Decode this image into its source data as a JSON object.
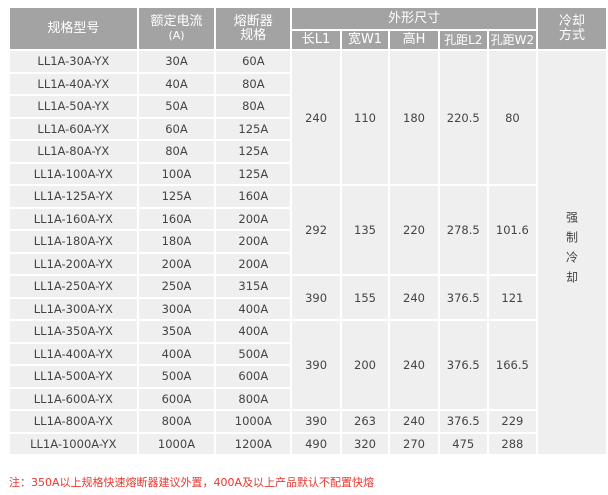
{
  "headers": {
    "model": "规格型号",
    "current": "额定电流",
    "current_unit": "(A)",
    "fuse": "熔断器规格",
    "dims": "外形尺寸",
    "l1": "长L1",
    "w1": "宽W1",
    "h": "高H",
    "l2": "孔距L2",
    "w2": "孔距W2",
    "cooling": "冷却方式"
  },
  "rows": [
    [
      "LL1A-30A-YX",
      "30A",
      "60A"
    ],
    [
      "LL1A-40A-YX",
      "40A",
      "80A"
    ],
    [
      "LL1A-50A-YX",
      "50A",
      "80A"
    ],
    [
      "LL1A-60A-YX",
      "60A",
      "125A"
    ],
    [
      "LL1A-80A-YX",
      "80A",
      "125A"
    ],
    [
      "LL1A-100A-YX",
      "100A",
      "125A"
    ],
    [
      "LL1A-125A-YX",
      "125A",
      "160A"
    ],
    [
      "LL1A-160A-YX",
      "160A",
      "200A"
    ],
    [
      "LL1A-180A-YX",
      "180A",
      "200A"
    ],
    [
      "LL1A-200A-YX",
      "200A",
      "200A"
    ],
    [
      "LL1A-250A-YX",
      "250A",
      "315A"
    ],
    [
      "LL1A-300A-YX",
      "300A",
      "400A"
    ],
    [
      "LL1A-350A-YX",
      "350A",
      "400A"
    ],
    [
      "LL1A-400A-YX",
      "400A",
      "500A"
    ],
    [
      "LL1A-500A-YX",
      "500A",
      "600A"
    ],
    [
      "LL1A-600A-YX",
      "600A",
      "800A"
    ],
    [
      "LL1A-800A-YX",
      "800A",
      "1000A"
    ],
    [
      "LL1A-1000A-YX",
      "1000A",
      "1200A"
    ]
  ],
  "dim_groups": [
    {
      "start": 0,
      "span": 6,
      "values": [
        "240",
        "110",
        "180",
        "220.5",
        "80"
      ]
    },
    {
      "start": 6,
      "span": 4,
      "values": [
        "292",
        "135",
        "220",
        "278.5",
        "101.6"
      ]
    },
    {
      "start": 10,
      "span": 2,
      "values": [
        "390",
        "155",
        "240",
        "376.5",
        "121"
      ]
    },
    {
      "start": 12,
      "span": 4,
      "values": [
        "390",
        "200",
        "240",
        "376.5",
        "166.5"
      ]
    },
    {
      "start": 16,
      "span": 1,
      "values": [
        "390",
        "263",
        "240",
        "376.5",
        "229"
      ]
    },
    {
      "start": 17,
      "span": 1,
      "values": [
        "490",
        "320",
        "270",
        "475",
        "288"
      ]
    }
  ],
  "cooling": "强制冷却",
  "note": "注：350A以上规格快速熔断器建议外置，400A及以上产品默认不配置快熔"
}
